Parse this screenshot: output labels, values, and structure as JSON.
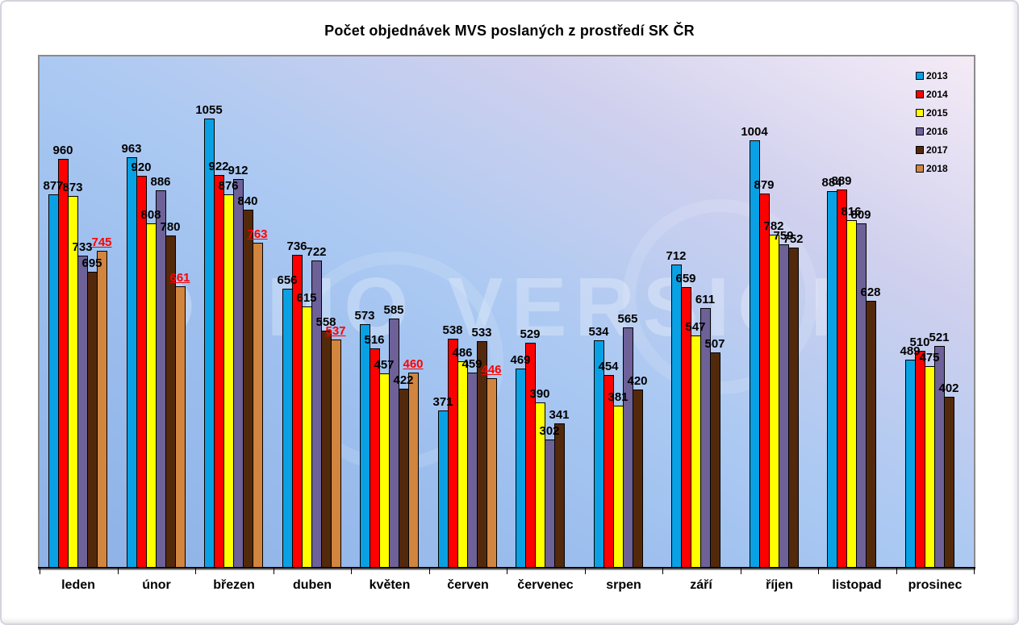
{
  "title": "Počet objednávek MVS poslaných z prostředí SK ČR",
  "watermark": "DEMO VERSION",
  "colors": {
    "plot_border": "#8b8b8b",
    "axis": "#000000",
    "highlight_label": "#ff0000",
    "background_blue": "#8db1e6",
    "background_pink": "#f5ebf6"
  },
  "chart_data": {
    "type": "bar",
    "title": "Počet objednávek MVS poslaných z prostředí SK ČR",
    "xlabel": "",
    "ylabel": "",
    "ylim": [
      0,
      1200
    ],
    "grid": false,
    "legend_position": "top-right-inside",
    "categories": [
      "leden",
      "únor",
      "březen",
      "duben",
      "květen",
      "červen",
      "červenec",
      "srpen",
      "září",
      "říjen",
      "listopad",
      "prosinec"
    ],
    "series": [
      {
        "name": "2013",
        "color": "#09a1e4",
        "label_color": "#000000",
        "label_underline": false,
        "values": [
          877,
          963,
          1055,
          656,
          573,
          371,
          469,
          534,
          712,
          1004,
          884,
          489
        ]
      },
      {
        "name": "2014",
        "color": "#ff0000",
        "label_color": "#000000",
        "label_underline": false,
        "values": [
          960,
          920,
          922,
          736,
          516,
          538,
          529,
          454,
          659,
          879,
          889,
          510
        ]
      },
      {
        "name": "2015",
        "color": "#ffff00",
        "label_color": "#000000",
        "label_underline": false,
        "values": [
          873,
          808,
          876,
          615,
          457,
          486,
          390,
          381,
          547,
          782,
          816,
          475
        ]
      },
      {
        "name": "2016",
        "color": "#6d6198",
        "label_color": "#000000",
        "label_underline": false,
        "values": [
          733,
          886,
          912,
          722,
          585,
          459,
          302,
          565,
          611,
          759,
          809,
          521
        ]
      },
      {
        "name": "2017",
        "color": "#53290b",
        "label_color": "#000000",
        "label_underline": false,
        "values": [
          695,
          780,
          840,
          558,
          422,
          533,
          341,
          420,
          507,
          752,
          628,
          402
        ]
      },
      {
        "name": "2018",
        "color": "#d1853f",
        "label_color": "#ff0000",
        "label_underline": true,
        "values": [
          745,
          661,
          763,
          537,
          460,
          446,
          null,
          null,
          null,
          null,
          null,
          null
        ]
      }
    ]
  }
}
